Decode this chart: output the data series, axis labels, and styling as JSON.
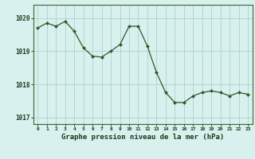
{
  "x": [
    0,
    1,
    2,
    3,
    4,
    5,
    6,
    7,
    8,
    9,
    10,
    11,
    12,
    13,
    14,
    15,
    16,
    17,
    18,
    19,
    20,
    21,
    22,
    23
  ],
  "y": [
    1019.7,
    1019.85,
    1019.75,
    1019.9,
    1019.6,
    1019.1,
    1018.85,
    1018.82,
    1019.0,
    1019.2,
    1019.75,
    1019.75,
    1019.15,
    1018.35,
    1017.75,
    1017.45,
    1017.45,
    1017.65,
    1017.75,
    1017.8,
    1017.75,
    1017.65,
    1017.75,
    1017.7
  ],
  "line_color": "#2d5a27",
  "marker_color": "#2d5a27",
  "bg_color": "#d8f0ee",
  "grid_color": "#aad4ce",
  "xlabel": "Graphe pression niveau de la mer (hPa)",
  "xlabel_color": "#1a3a15",
  "tick_label_color": "#1a3a15",
  "yticks": [
    1017,
    1018,
    1019,
    1020
  ],
  "ylim": [
    1016.8,
    1020.4
  ],
  "xlim": [
    -0.5,
    23.5
  ]
}
